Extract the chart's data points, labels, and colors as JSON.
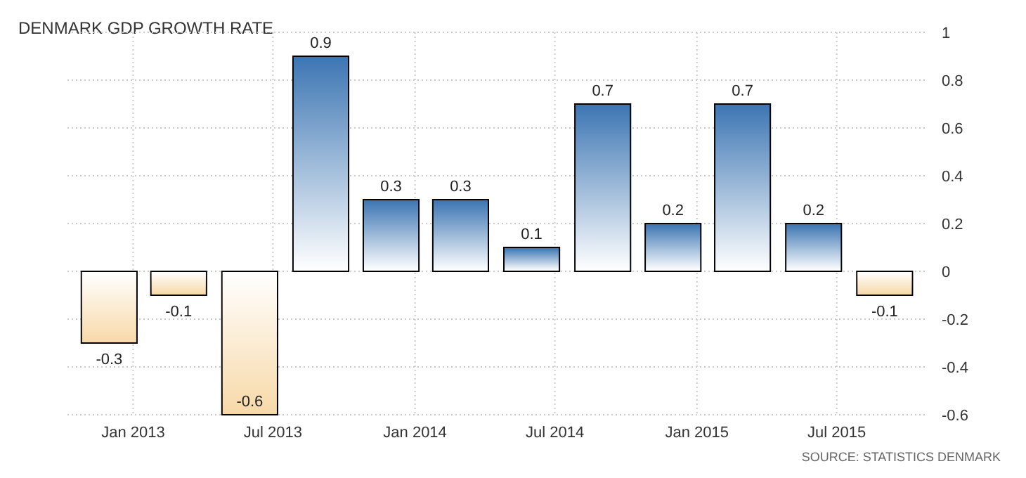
{
  "chart_data": {
    "type": "bar",
    "title": "DENMARK GDP GROWTH RATE",
    "x": [
      "2012-12",
      "2013-03",
      "2013-06",
      "2013-09",
      "2013-12",
      "2014-03",
      "2014-06",
      "2014-09",
      "2014-12",
      "2015-03",
      "2015-06",
      "2015-09"
    ],
    "values": [
      -0.3,
      -0.1,
      -0.6,
      0.9,
      0.3,
      0.3,
      0.1,
      0.7,
      0.2,
      0.7,
      0.2,
      -0.1
    ],
    "colors": [
      "#f7d9a8",
      "#f7d9a8",
      "#f7d9a8",
      "#3d76b3",
      "#3d76b3",
      "#3d76b3",
      "#3d76b3",
      "#3d76b3",
      "#3d76b3",
      "#3d76b3",
      "#3d76b3",
      "#f7d9a8"
    ],
    "xlim": [
      "2012-10-08",
      "2015-10-23"
    ],
    "xticks": [
      {
        "value": "2013-01-01",
        "label": "Jan 2013"
      },
      {
        "value": "2013-07-01",
        "label": "Jul 2013"
      },
      {
        "value": "2014-01-01",
        "label": "Jan 2014"
      },
      {
        "value": "2014-07-01",
        "label": "Jul 2014"
      },
      {
        "value": "2015-01-01",
        "label": "Jan 2015"
      },
      {
        "value": "2015-07-01",
        "label": "Jul 2015"
      }
    ],
    "ylim": [
      -0.6,
      1
    ],
    "yticks": [
      -0.6,
      -0.4,
      -0.2,
      0,
      0.2,
      0.4,
      0.6,
      0.8,
      1
    ],
    "grid": true,
    "data_labels": true,
    "annotations": [
      "SOURCE: STATISTICS DENMARK"
    ]
  }
}
